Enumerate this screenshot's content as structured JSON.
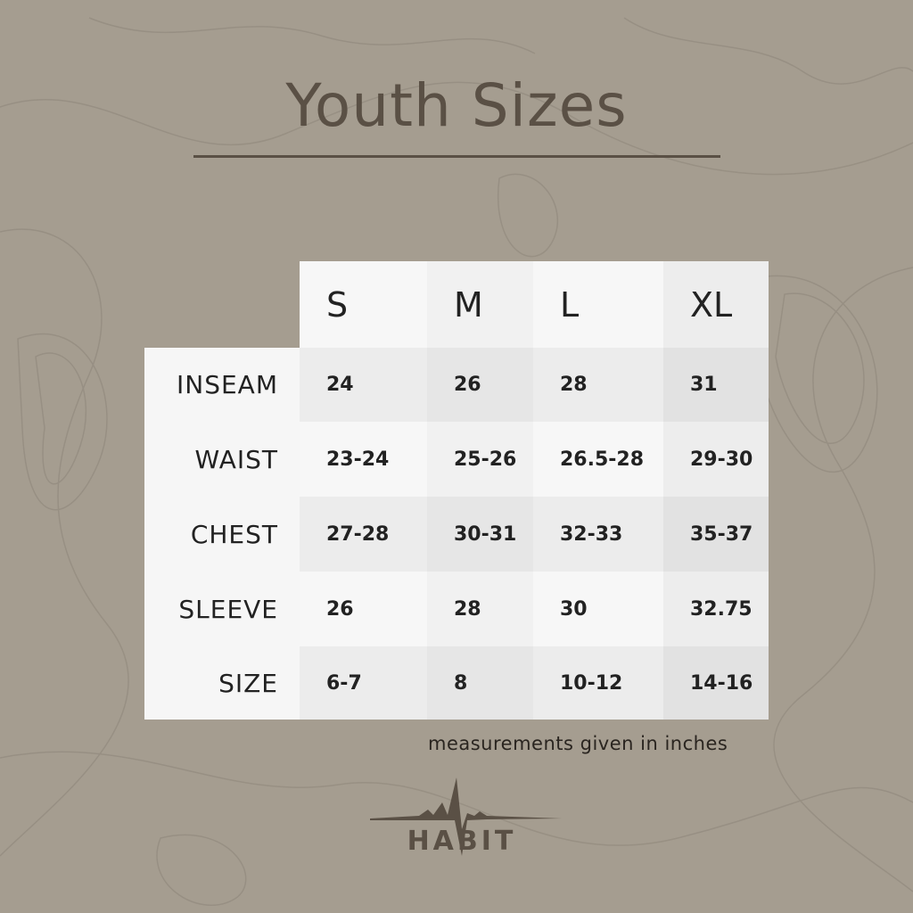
{
  "title": "Youth Sizes",
  "table": {
    "columns": [
      "S",
      "M",
      "L",
      "XL"
    ],
    "rows": [
      {
        "label": "INSEAM",
        "values": [
          "24",
          "26",
          "28",
          "31"
        ]
      },
      {
        "label": "WAIST",
        "values": [
          "23-24",
          "25-26",
          "26.5-28",
          "29-30"
        ]
      },
      {
        "label": "CHEST",
        "values": [
          "27-28",
          "30-31",
          "32-33",
          "35-37"
        ]
      },
      {
        "label": "SLEEVE",
        "values": [
          "26",
          "28",
          "30",
          "32.75"
        ]
      },
      {
        "label": "SIZE",
        "values": [
          "6-7",
          "8",
          "10-12",
          "14-16"
        ]
      }
    ]
  },
  "note": "measurements given in inches",
  "logo": {
    "text": "HABIT"
  },
  "colors": {
    "background": "#a59d90",
    "title": "#5a5045",
    "logo": "#5a5045"
  }
}
